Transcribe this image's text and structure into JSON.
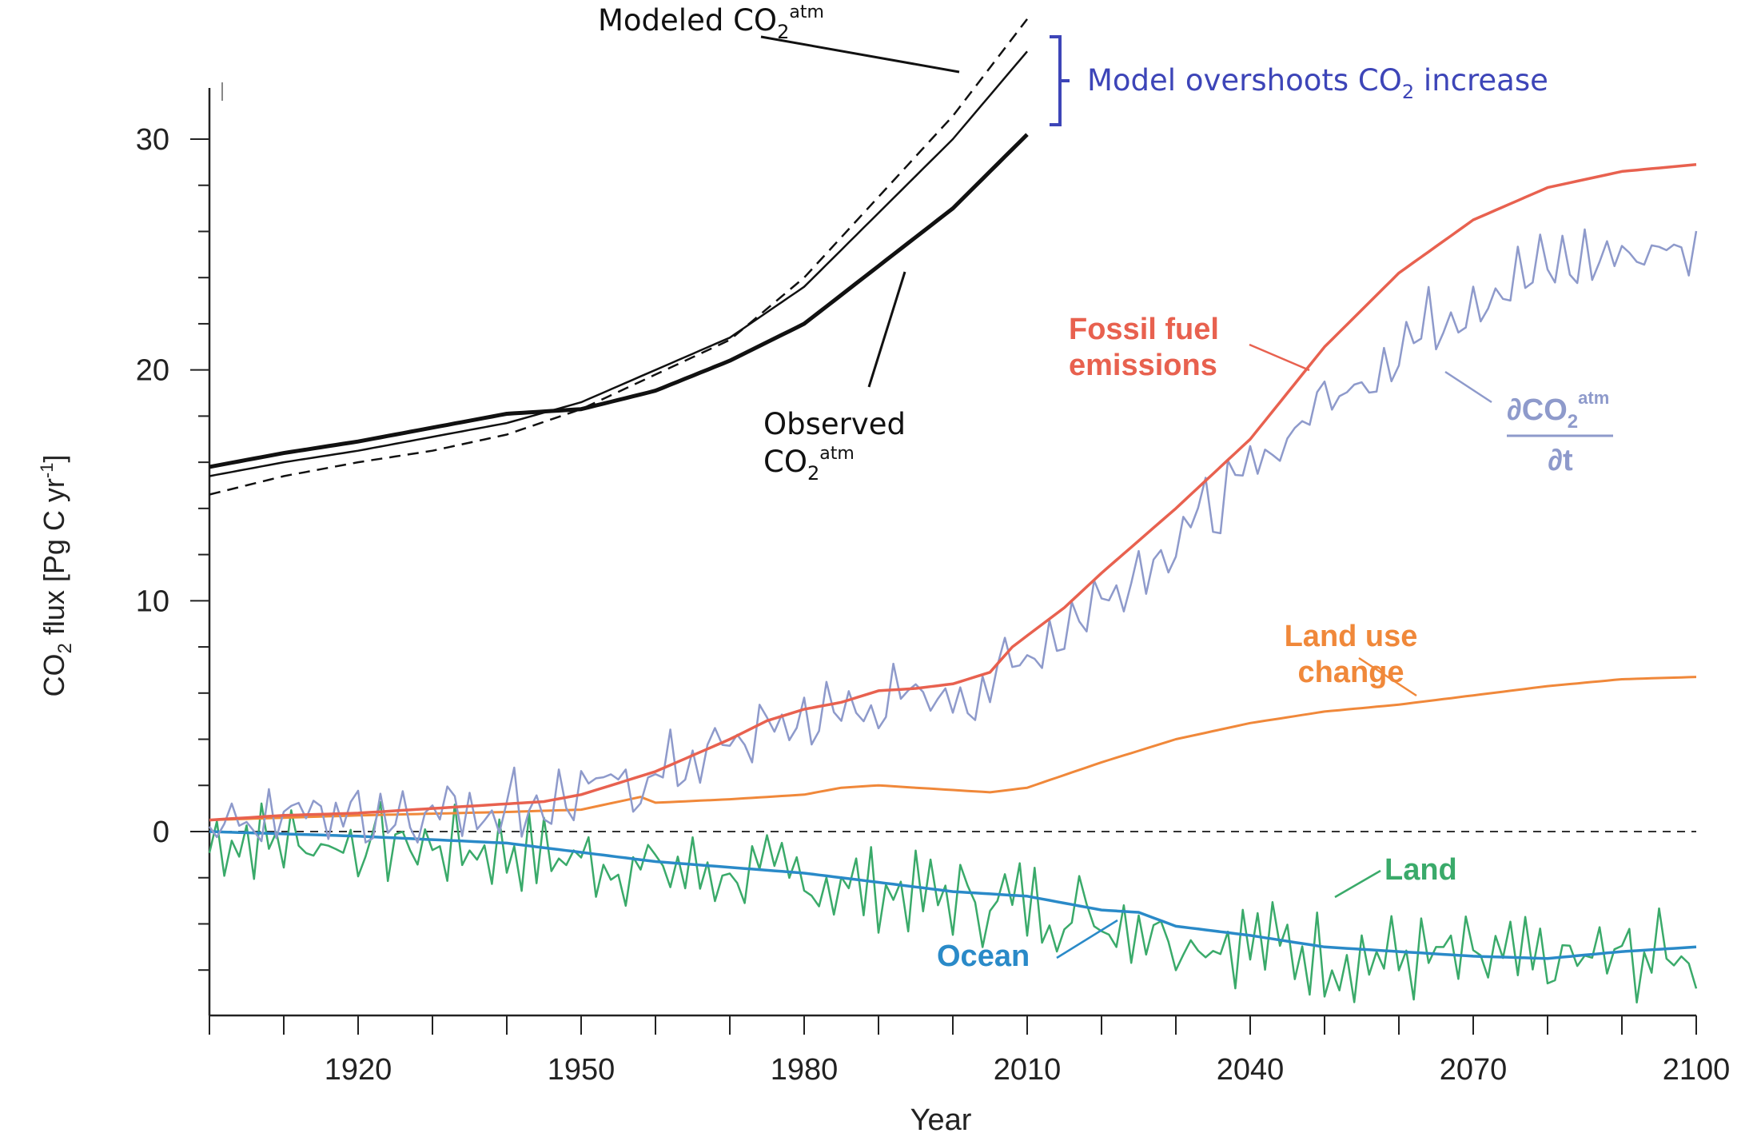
{
  "chart_data": {
    "type": "line",
    "xlabel": "Year",
    "ylabel": {
      "main": "CO",
      "sub": "2",
      "rest": " flux [Pg C yr",
      "sup": "-1",
      "end": "]"
    },
    "xlim": [
      1900,
      2100
    ],
    "ylim": [
      -8,
      30
    ],
    "xticks": [
      1920,
      1950,
      1980,
      2010,
      2040,
      2070,
      2100
    ],
    "yticks": [
      0,
      10,
      20,
      30
    ],
    "zero_line": "dashed",
    "annotations": {
      "modeled": {
        "main": "Modeled CO",
        "sub": "2",
        "sup": "atm"
      },
      "observed_line1": "Observed",
      "observed_line2": {
        "main": "CO",
        "sub": "2",
        "sup": "atm"
      },
      "overshoot": {
        "pre": "Model overshoots CO",
        "sub": "2",
        "post": " increase"
      },
      "fossil": [
        "Fossil fuel",
        "emissions"
      ],
      "landuse": [
        "Land use",
        "change"
      ],
      "land": "Land",
      "ocean": "Ocean",
      "dcdt": {
        "num_main": "∂CO",
        "num_sub": "2",
        "num_sup": "atm",
        "den": "∂t"
      }
    },
    "colors": {
      "fossil": "#e8614f",
      "dcdt": "#8e9acb",
      "landuse": "#f0883a",
      "land": "#3aaa6a",
      "ocean": "#2a8ac8",
      "atm": "#111111",
      "overshoot": "#3d45b8"
    },
    "series": [
      {
        "name": "Fossil fuel emissions",
        "key": "fossil",
        "x": [
          1900,
          1910,
          1920,
          1930,
          1940,
          1945,
          1950,
          1955,
          1960,
          1965,
          1970,
          1975,
          1980,
          1985,
          1990,
          1995,
          2000,
          2005,
          2008,
          2015,
          2020,
          2030,
          2040,
          2050,
          2060,
          2070,
          2080,
          2090,
          2100
        ],
        "y": [
          0.5,
          0.7,
          0.8,
          1.0,
          1.2,
          1.3,
          1.6,
          2.1,
          2.6,
          3.3,
          4.0,
          4.8,
          5.3,
          5.6,
          6.1,
          6.2,
          6.4,
          6.9,
          8.0,
          9.7,
          11.2,
          14.0,
          17.0,
          21.0,
          24.2,
          26.5,
          27.9,
          28.6,
          28.9
        ]
      },
      {
        "name": "Land use change",
        "key": "landuse",
        "x": [
          1900,
          1920,
          1940,
          1950,
          1958,
          1960,
          1970,
          1980,
          1985,
          1990,
          1995,
          2000,
          2005,
          2010,
          2020,
          2030,
          2040,
          2050,
          2060,
          2070,
          2080,
          2090,
          2100
        ],
        "y": [
          0.5,
          0.7,
          0.85,
          0.95,
          1.5,
          1.25,
          1.4,
          1.6,
          1.9,
          2.0,
          1.9,
          1.8,
          1.7,
          1.9,
          3.0,
          4.0,
          4.7,
          5.2,
          5.5,
          5.9,
          6.3,
          6.6,
          6.7
        ]
      },
      {
        "name": "∂CO2atm/∂t",
        "key": "dcdt",
        "trend": "fossil",
        "ratio": 0.9
      },
      {
        "name": "Land",
        "key": "land"
      },
      {
        "name": "Ocean",
        "key": "ocean",
        "x": [
          1900,
          1920,
          1940,
          1960,
          1980,
          2000,
          2010,
          2020,
          2025,
          2030,
          2040,
          2050,
          2060,
          2070,
          2080,
          2090,
          2100
        ],
        "y": [
          0.0,
          -0.2,
          -0.5,
          -1.3,
          -1.8,
          -2.6,
          -2.8,
          -3.4,
          -3.5,
          -4.1,
          -4.5,
          -5.0,
          -5.2,
          -5.4,
          -5.5,
          -5.2,
          -5.0
        ]
      },
      {
        "name": "Observed CO2atm",
        "key": "observed",
        "x": [
          1900,
          1910,
          1920,
          1930,
          1940,
          1950,
          1960,
          1970,
          1980,
          1990,
          2000,
          2010
        ],
        "y": [
          15.8,
          16.4,
          16.9,
          17.5,
          18.1,
          18.3,
          19.1,
          20.4,
          22.0,
          24.5,
          27.0,
          30.2
        ]
      },
      {
        "name": "Modeled CO2atm (solid)",
        "key": "model_solid",
        "x": [
          1900,
          1910,
          1920,
          1930,
          1940,
          1950,
          1960,
          1970,
          1980,
          1990,
          2000,
          2010
        ],
        "y": [
          15.4,
          16.0,
          16.5,
          17.1,
          17.7,
          18.6,
          20.0,
          21.4,
          23.6,
          26.8,
          30.0,
          33.8
        ]
      },
      {
        "name": "Modeled CO2atm (dashed)",
        "key": "model_dashed",
        "x": [
          1900,
          1910,
          1920,
          1930,
          1940,
          1950,
          1960,
          1970,
          1980,
          1990,
          2000,
          2010
        ],
        "y": [
          14.6,
          15.4,
          16.0,
          16.5,
          17.2,
          18.3,
          19.8,
          21.3,
          24.0,
          27.5,
          31.0,
          35.2
        ]
      }
    ]
  }
}
